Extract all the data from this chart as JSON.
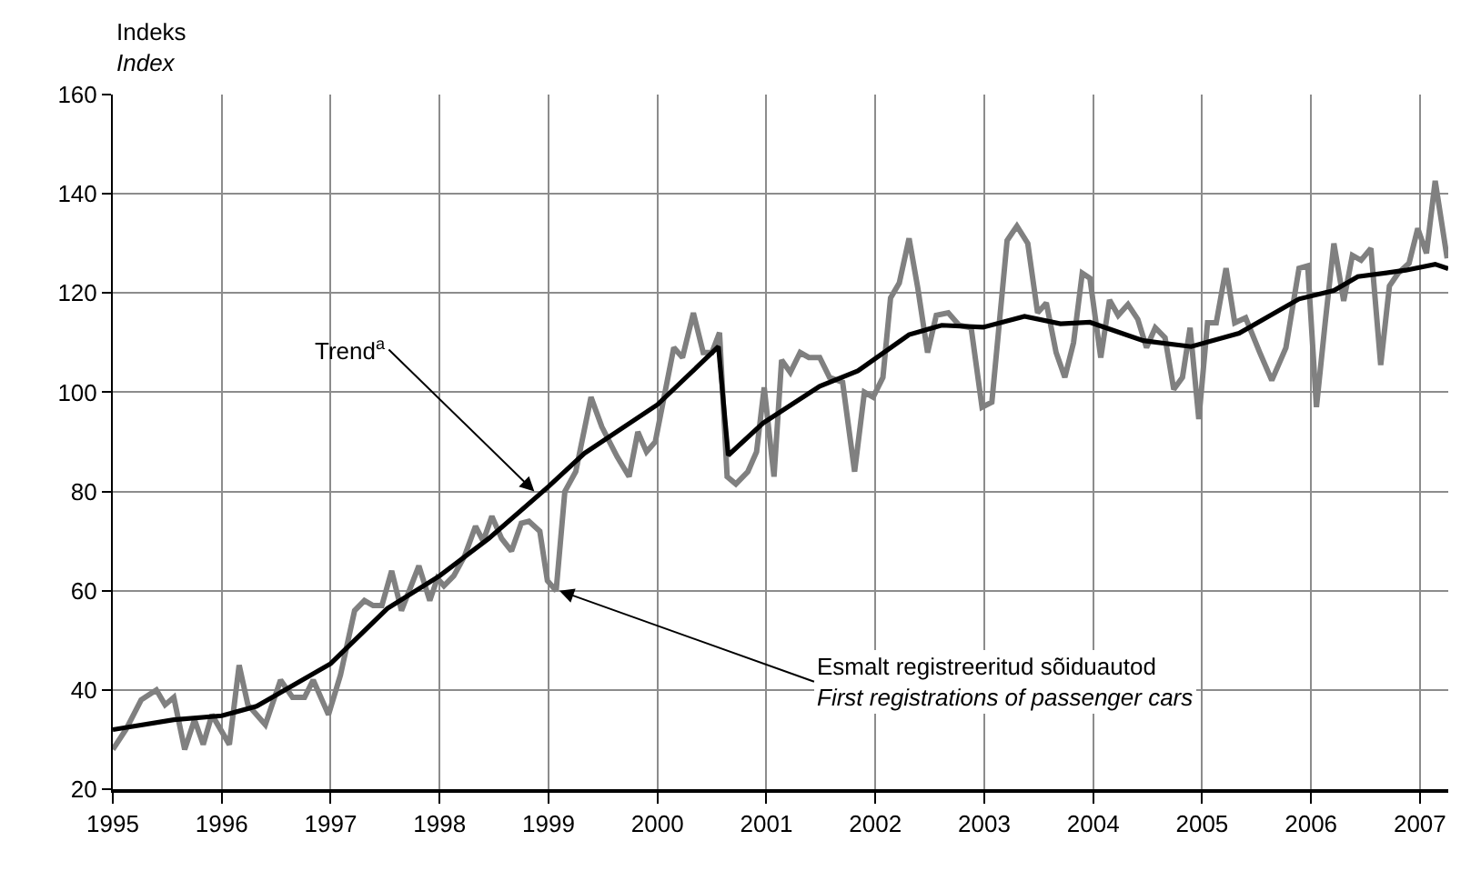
{
  "chart_data": {
    "type": "line",
    "ylabel": "Indeks\nIndex",
    "xlim": [
      1995,
      2007.26
    ],
    "xticks": [
      1995,
      1996,
      1997,
      1998,
      1999,
      2000,
      2001,
      2002,
      2003,
      2004,
      2005,
      2006,
      2007
    ],
    "ylim": [
      20,
      160
    ],
    "yticks": [
      20,
      40,
      60,
      80,
      100,
      120,
      140,
      160
    ],
    "grid": true,
    "marker": "none",
    "line_style": "solid",
    "series": [
      {
        "color": "#808080",
        "x": [
          1995.0,
          1995.12,
          1995.26,
          1995.4,
          1995.48,
          1995.56,
          1995.66,
          1995.75,
          1995.83,
          1995.91,
          1996.07,
          1996.16,
          1996.24,
          1996.4,
          1996.54,
          1996.65,
          1996.76,
          1996.84,
          1996.98,
          1997.09,
          1997.22,
          1997.31,
          1997.39,
          1997.47,
          1997.56,
          1997.65,
          1997.81,
          1997.91,
          1997.98,
          1998.04,
          1998.13,
          1998.23,
          1998.33,
          1998.4,
          1998.48,
          1998.57,
          1998.66,
          1998.75,
          1998.82,
          1998.92,
          1998.99,
          1999.07,
          1999.15,
          1999.25,
          1999.39,
          1999.49,
          1999.63,
          1999.74,
          1999.82,
          1999.9,
          1999.98,
          2000.15,
          2000.23,
          2000.33,
          2000.42,
          2000.5,
          2000.57,
          2000.64,
          2000.72,
          2000.83,
          2000.91,
          2000.98,
          2001.07,
          2001.14,
          2001.22,
          2001.31,
          2001.39,
          2001.49,
          2001.58,
          2001.7,
          2001.81,
          2001.9,
          2001.98,
          2002.07,
          2002.14,
          2002.22,
          2002.31,
          2002.39,
          2002.48,
          2002.56,
          2002.67,
          2002.77,
          2002.88,
          2002.98,
          2003.07,
          2003.21,
          2003.3,
          2003.4,
          2003.49,
          2003.57,
          2003.66,
          2003.74,
          2003.82,
          2003.9,
          2003.97,
          2004.07,
          2004.15,
          2004.23,
          2004.32,
          2004.41,
          2004.49,
          2004.57,
          2004.66,
          2004.74,
          2004.82,
          2004.89,
          2004.97,
          2005.05,
          2005.13,
          2005.22,
          2005.3,
          2005.4,
          2005.53,
          2005.64,
          2005.77,
          2005.89,
          2005.97,
          2006.05,
          2006.13,
          2006.21,
          2006.3,
          2006.38,
          2006.46,
          2006.55,
          2006.64,
          2006.72,
          2006.8,
          2006.9,
          2006.98,
          2007.06,
          2007.14,
          2007.25
        ],
        "values": [
          28,
          32,
          38,
          40,
          37,
          38.5,
          28,
          34,
          29,
          35,
          29,
          45,
          37,
          33,
          42,
          38.5,
          38.5,
          42,
          35,
          43,
          56,
          58,
          57,
          57,
          64,
          56,
          65,
          58,
          62.5,
          61,
          63,
          67,
          73,
          70,
          75,
          70.5,
          68,
          73.6,
          74,
          72,
          62,
          60,
          80,
          84,
          99,
          93,
          87,
          83,
          92,
          88,
          90,
          109,
          107,
          116,
          108,
          108,
          112,
          83,
          81.5,
          84,
          88,
          101,
          83,
          106.5,
          104,
          108,
          107,
          107,
          103,
          102,
          84,
          100,
          99,
          103,
          119,
          122,
          131,
          121,
          108,
          115.5,
          116,
          113.5,
          113,
          97,
          98,
          130.6,
          133.5,
          130,
          116,
          118,
          108,
          103,
          110,
          124,
          123,
          107,
          118.6,
          115.5,
          117.7,
          114.7,
          109,
          113,
          111,
          100.6,
          103,
          113,
          94.6,
          114,
          114,
          125,
          114,
          115,
          108,
          102.4,
          109,
          125,
          125.5,
          97,
          114,
          130,
          118.4,
          127.6,
          126.6,
          129,
          105.5,
          121.4,
          124,
          126,
          133,
          128,
          142.6,
          127
        ]
      },
      {
        "color": "#000000",
        "x": [
          1995.0,
          1995.56,
          1996.0,
          1996.32,
          1997.0,
          1997.52,
          1998.0,
          1998.45,
          1999.0,
          1999.33,
          2000.0,
          2000.56,
          2000.65,
          2000.97,
          2001.49,
          2001.84,
          2002.31,
          2002.61,
          2002.99,
          2003.37,
          2003.7,
          2003.97,
          2004.46,
          2004.9,
          2005.34,
          2005.89,
          2006.21,
          2006.43,
          2006.87,
          2007.14,
          2007.26
        ],
        "values": [
          32,
          34,
          34.8,
          36.7,
          45.3,
          56.4,
          63,
          70.5,
          81,
          87.7,
          97.5,
          109.2,
          87.3,
          93.8,
          101.2,
          104.3,
          111.6,
          113.5,
          113.1,
          115.3,
          113.8,
          114.1,
          110.4,
          109.2,
          111.9,
          118.8,
          120.5,
          123.3,
          124.6,
          125.8,
          124.9
        ]
      }
    ],
    "annotations": [
      {
        "text": "Trend$^{a}$",
        "x": 1998.87,
        "y": 80
      },
      {
        "text": "Esmalt registreeritud sõiduautod\nFirst registrations of passenger cars",
        "x": 1999.1,
        "y": 60
      }
    ]
  }
}
